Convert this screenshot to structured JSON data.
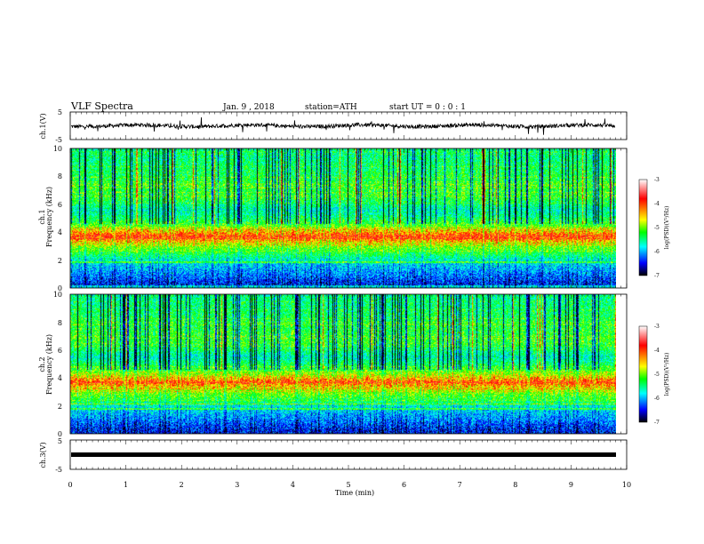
{
  "header": {
    "title": "VLF Spectra",
    "date": "Jan. 9 , 2018",
    "station": "station=ATH",
    "start_ut": "start UT =  0 : 0 : 1"
  },
  "panels": {
    "ch1_wave": {
      "label": "ch.1(V)",
      "yticks": [
        "5",
        "-5"
      ]
    },
    "ch1_spec": {
      "label_top": "ch.1",
      "label": "Frequency (kHz)",
      "yticks": [
        "10",
        "8",
        "6",
        "4",
        "2",
        "0"
      ]
    },
    "ch2_spec": {
      "label_top": "ch.2",
      "label": "Frequency (kHz)",
      "yticks": [
        "10",
        "8",
        "6",
        "4",
        "2",
        "0"
      ]
    },
    "ch3_wave": {
      "label": "ch.3(V)",
      "yticks": [
        "5",
        "-5"
      ]
    }
  },
  "colorbar": {
    "label": "log(PSD)(V²/Hz)",
    "ticks": [
      "-3",
      "-4",
      "-5",
      "-6",
      "-7"
    ],
    "colors": [
      "#ffffff",
      "#ff0000",
      "#ffff00",
      "#00ff00",
      "#00ffff",
      "#0000ff",
      "#000000"
    ]
  },
  "chart_data": {
    "type": "heatmap",
    "title": "VLF Spectra",
    "xlabel": "Time (min)",
    "x_ticks": [
      "0",
      "1",
      "2",
      "3",
      "4",
      "5",
      "6",
      "7",
      "8",
      "9",
      "10"
    ],
    "xlim": [
      0,
      10
    ],
    "data_end_min": 9.8,
    "waveform_ylim": [
      -5,
      5
    ],
    "spectrogram_ylim_khz": [
      0,
      10
    ],
    "psd_clim_log": [
      -7,
      -3
    ],
    "channels": [
      {
        "name": "ch.1",
        "waveform_offset_v": 0,
        "band_profile_khz": [
          {
            "f": 0.3,
            "logpsd": -6.5
          },
          {
            "f": 1.0,
            "logpsd": -6.2
          },
          {
            "f": 1.8,
            "logpsd": -5.9
          },
          {
            "f": 2.3,
            "logpsd": -5.5
          },
          {
            "f": 3.0,
            "logpsd": -5.0
          },
          {
            "f": 3.7,
            "logpsd": -4.2
          },
          {
            "f": 4.5,
            "logpsd": -5.2
          },
          {
            "f": 5.5,
            "logpsd": -5.8
          },
          {
            "f": 6.5,
            "logpsd": -5.3
          },
          {
            "f": 8.0,
            "logpsd": -5.4
          },
          {
            "f": 9.5,
            "logpsd": -5.6
          }
        ]
      },
      {
        "name": "ch.2",
        "band_profile_khz": [
          {
            "f": 0.3,
            "logpsd": -6.5
          },
          {
            "f": 1.0,
            "logpsd": -6.2
          },
          {
            "f": 1.8,
            "logpsd": -5.9
          },
          {
            "f": 2.3,
            "logpsd": -5.4
          },
          {
            "f": 3.0,
            "logpsd": -5.0
          },
          {
            "f": 3.7,
            "logpsd": -4.3
          },
          {
            "f": 4.5,
            "logpsd": -5.2
          },
          {
            "f": 5.5,
            "logpsd": -5.8
          },
          {
            "f": 6.5,
            "logpsd": -5.3
          },
          {
            "f": 8.0,
            "logpsd": -5.4
          },
          {
            "f": 9.5,
            "logpsd": -5.6
          }
        ]
      },
      {
        "name": "ch.3",
        "waveform_offset_v": -1.5
      }
    ]
  }
}
